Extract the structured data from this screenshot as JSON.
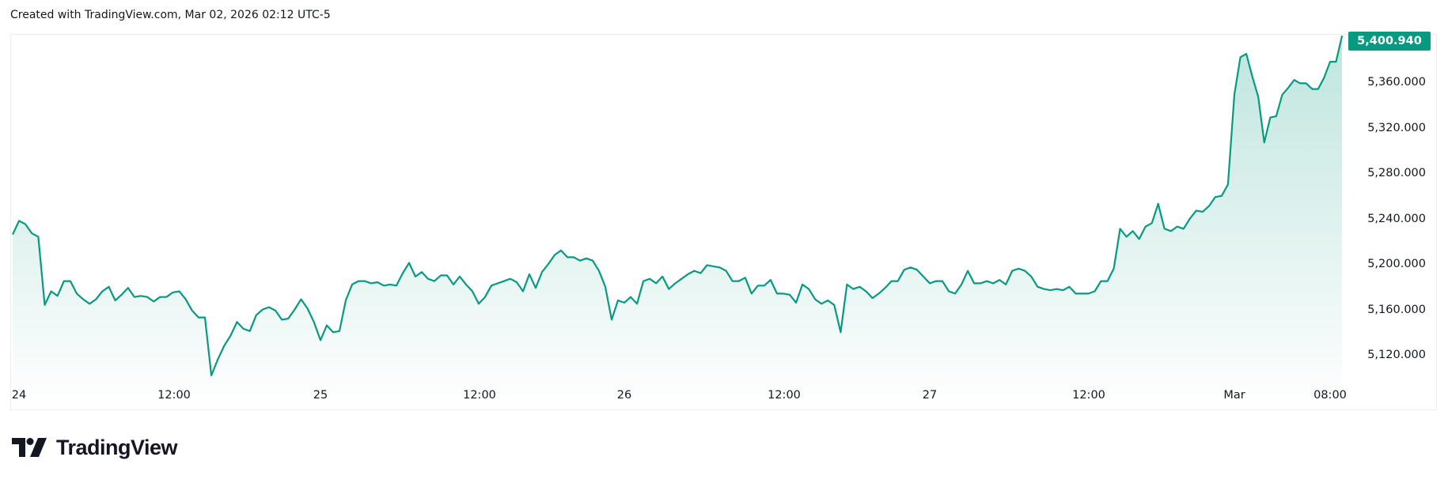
{
  "header": {
    "caption": "Created with TradingView.com, Mar 02, 2026 02:12 UTC-5"
  },
  "brand": {
    "logo_text": "TradingView",
    "logo_icon": "tradingview-logo-icon"
  },
  "colors": {
    "line": "#089981",
    "badge": "#089981",
    "fill_top": "rgba(8,153,129,0.26)",
    "fill_bottom": "rgba(8,153,129,0.0)"
  },
  "chart_data": {
    "type": "area",
    "title": "",
    "xlabel": "",
    "ylabel": "",
    "ylim": [
      5098,
      5403
    ],
    "grid": false,
    "legend": "none",
    "last_price": {
      "value": 5400.94,
      "label": "5,400.940"
    },
    "y_ticks": [
      {
        "value": 5120,
        "label": "5,120.000"
      },
      {
        "value": 5160,
        "label": "5,160.000"
      },
      {
        "value": 5200,
        "label": "5,200.000"
      },
      {
        "value": 5240,
        "label": "5,240.000"
      },
      {
        "value": 5280,
        "label": "5,280.000"
      },
      {
        "value": 5320,
        "label": "5,320.000"
      },
      {
        "value": 5360,
        "label": "5,360.000"
      }
    ],
    "x_ticks": [
      "24",
      "12:00",
      "25",
      "12:00",
      "26",
      "12:00",
      "27",
      "12:00",
      "Mar",
      "08:00"
    ],
    "series": [
      {
        "date": "Feb 24",
        "values": [
          5226,
          5238,
          5235,
          5227,
          5224,
          5164,
          5176,
          5172,
          5185,
          5185,
          5174,
          5169,
          5165,
          5169,
          5176,
          5180,
          5168,
          5173,
          5179,
          5171,
          5172,
          5171,
          5167,
          5171,
          5171,
          5175,
          5176,
          5169,
          5159,
          5153,
          5153,
          5102,
          5116,
          5128,
          5137,
          5149,
          5143,
          5141,
          5155,
          5160,
          5162,
          5159,
          5151,
          5152,
          5160,
          5169,
          5161,
          5149
        ]
      },
      {
        "date": "Feb 25",
        "values": [
          5133,
          5146,
          5140,
          5141,
          5168,
          5182,
          5185,
          5185,
          5183,
          5184,
          5181,
          5182,
          5181,
          5192,
          5201,
          5189,
          5193,
          5187,
          5185,
          5190,
          5190,
          5182,
          5189,
          5182,
          5176,
          5165,
          5171,
          5181,
          5183,
          5185,
          5187,
          5184,
          5176,
          5191,
          5179,
          5193,
          5200,
          5208,
          5212,
          5206,
          5206,
          5203,
          5205,
          5203,
          5194,
          5180,
          5151,
          5168
        ]
      },
      {
        "date": "Feb 26",
        "values": [
          5166,
          5171,
          5165,
          5185,
          5187,
          5183,
          5189,
          5178,
          5183,
          5187,
          5191,
          5194,
          5192,
          5199,
          5198,
          5197,
          5194,
          5185,
          5185,
          5188,
          5174,
          5181,
          5181,
          5186,
          5174,
          5174,
          5173,
          5166,
          5182,
          5178,
          5169,
          5165,
          5168,
          5164,
          5140,
          5182,
          5178,
          5180,
          5176,
          5170,
          5174,
          5179,
          5185,
          5185,
          5195,
          5197,
          5195,
          5189
        ]
      },
      {
        "date": "Feb 27",
        "values": [
          5183,
          5185,
          5185,
          5176,
          5174,
          5182,
          5194,
          5183,
          5183,
          5185,
          5183,
          5186,
          5182,
          5194,
          5196,
          5194,
          5189,
          5180,
          5178,
          5177,
          5178,
          5177,
          5180,
          5174,
          5174,
          5174,
          5176,
          5185,
          5185,
          5196,
          5231,
          5224,
          5229,
          5222,
          5233,
          5236,
          5253,
          5231,
          5229,
          5233,
          5231,
          5240,
          5247,
          5246,
          5251,
          5259,
          5260,
          5270
        ]
      },
      {
        "date": "Mar 02",
        "values": [
          5349,
          5382,
          5385,
          5365,
          5347,
          5307,
          5329,
          5330,
          5349,
          5355,
          5362,
          5359,
          5359,
          5354,
          5354,
          5364,
          5378,
          5378,
          5400.94
        ]
      }
    ]
  }
}
